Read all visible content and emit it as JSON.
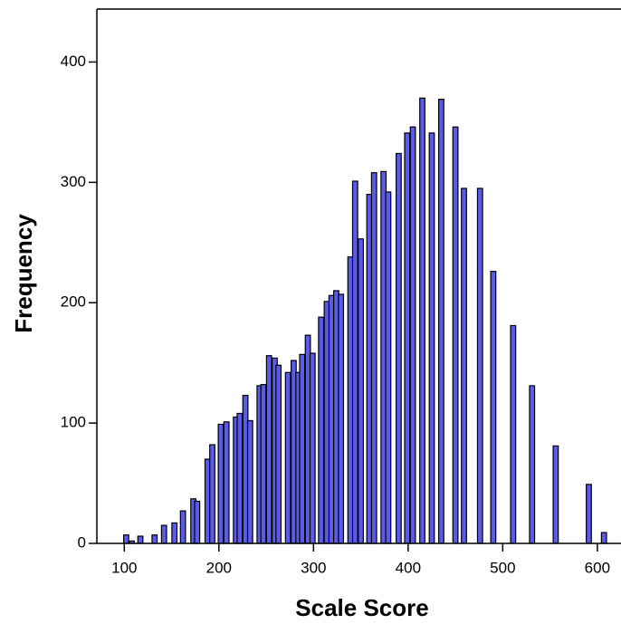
{
  "chart_data": {
    "type": "bar",
    "x_label": "Scale Score",
    "y_label": "Frequency",
    "x": [
      102,
      108,
      117,
      132,
      142,
      153,
      162,
      173,
      177,
      188,
      193,
      202,
      208,
      218,
      222,
      228,
      233,
      243,
      247,
      253,
      259,
      263,
      273,
      279,
      284,
      288,
      294,
      299,
      308,
      314,
      319,
      324,
      329,
      339,
      344,
      350,
      359,
      364,
      374,
      379,
      390,
      399,
      405,
      415,
      425,
      435,
      450,
      459,
      476,
      490,
      511,
      531,
      556,
      591,
      607
    ],
    "values": [
      7,
      2,
      6,
      7,
      15,
      17,
      27,
      37,
      35,
      70,
      82,
      99,
      101,
      105,
      108,
      123,
      102,
      131,
      132,
      156,
      154,
      148,
      142,
      152,
      142,
      157,
      173,
      158,
      188,
      201,
      206,
      210,
      207,
      238,
      301,
      253,
      290,
      308,
      309,
      292,
      324,
      341,
      346,
      370,
      341,
      369,
      346,
      295,
      295,
      226,
      181,
      131,
      81,
      49,
      9
    ],
    "color": "#5b5bea",
    "xlim": [
      71,
      625
    ],
    "ylim": [
      0,
      444
    ],
    "xticks": [
      100,
      200,
      300,
      400,
      500,
      600
    ],
    "yticks": [
      0,
      100,
      200,
      300,
      400
    ],
    "grid": false
  }
}
